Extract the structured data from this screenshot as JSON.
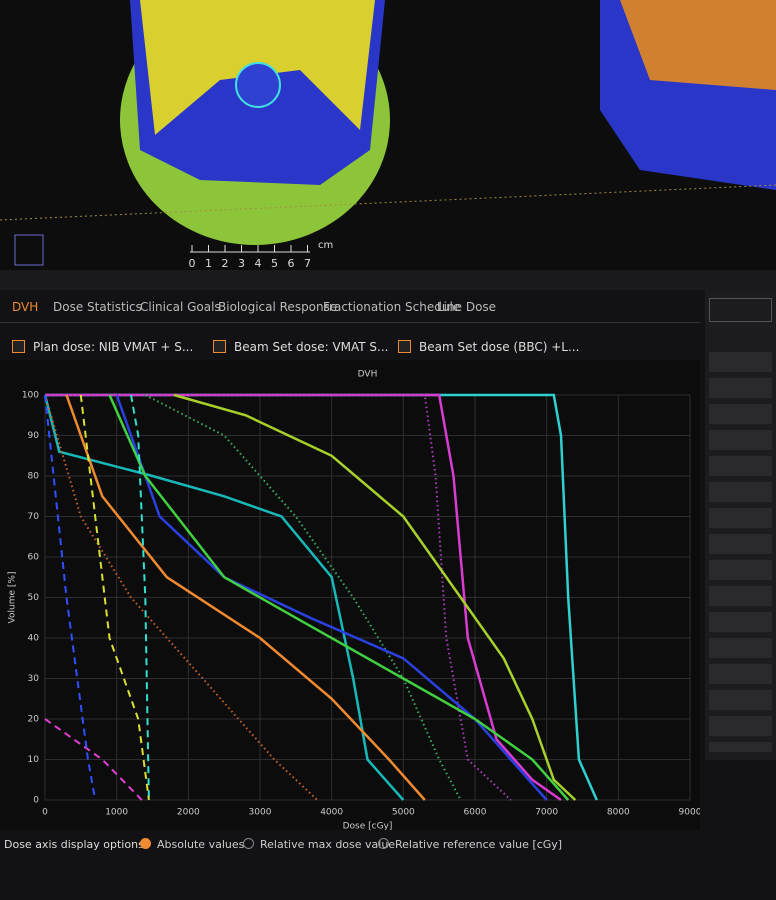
{
  "ui": {
    "tabs": [
      "DVH",
      "Dose Statistics",
      "Clinical Goals",
      "Biological Response",
      "Fractionation Schedule",
      "Line Dose"
    ],
    "checkboxes": [
      "Plan dose: NIB VMAT + S...",
      "Beam Set dose: VMAT S...",
      "Beam Set dose (BBC) +L..."
    ],
    "scale": {
      "ticks": [
        0,
        1,
        2,
        3,
        4,
        5,
        6,
        7
      ],
      "unit": "cm"
    },
    "dose_options": {
      "label": "Dose axis display options:",
      "options": [
        "Absolute values",
        "Relative max dose value",
        "Relative reference value [cGy]"
      ]
    }
  },
  "chart_data": {
    "type": "line",
    "title": "DVH",
    "x_label": "Dose [cGy]",
    "y_label": "Volume [%]",
    "xlim": [
      0,
      9000
    ],
    "ylim": [
      0,
      100
    ],
    "xticks": [
      0,
      1000,
      2000,
      3000,
      4000,
      5000,
      6000,
      7000,
      8000,
      9000
    ],
    "yticks": [
      0,
      10,
      20,
      30,
      40,
      50,
      60,
      70,
      80,
      90,
      100
    ],
    "grid": true,
    "series": [
      {
        "color": "#2fd0d0",
        "style": "solid",
        "x": [
          0,
          7100,
          7200,
          7300,
          7450,
          7700
        ],
        "values": [
          100,
          100,
          90,
          50,
          10,
          0
        ]
      },
      {
        "color": "#d93cd0",
        "style": "solid",
        "x": [
          0,
          5500,
          5700,
          5900,
          6300,
          6800,
          7200
        ],
        "values": [
          100,
          100,
          80,
          40,
          15,
          5,
          0
        ]
      },
      {
        "color": "#b040c0",
        "style": "dotted",
        "x": [
          0,
          5300,
          5450,
          5600,
          5900,
          6500
        ],
        "values": [
          100,
          100,
          80,
          40,
          10,
          0
        ]
      },
      {
        "color": "#a8d02a",
        "style": "solid",
        "x": [
          1800,
          2800,
          4000,
          5000,
          5800,
          6400,
          6800,
          7100,
          7400
        ],
        "values": [
          100,
          95,
          85,
          70,
          50,
          35,
          20,
          5,
          0
        ]
      },
      {
        "color": "#3ab060",
        "style": "dotted",
        "x": [
          1400,
          2500,
          3500,
          4300,
          5000,
          5500,
          5800
        ],
        "values": [
          100,
          90,
          70,
          50,
          30,
          10,
          0
        ]
      },
      {
        "color": "#18b8b8",
        "style": "solid",
        "x": [
          0,
          200,
          1500,
          2500,
          3300,
          4000,
          4300,
          4500,
          5000
        ],
        "values": [
          100,
          86,
          80,
          75,
          70,
          55,
          30,
          10,
          0
        ]
      },
      {
        "color": "#2a40e0",
        "style": "solid",
        "x": [
          1000,
          1600,
          2500,
          3700,
          5000,
          6000,
          6500,
          7000
        ],
        "values": [
          100,
          70,
          55,
          45,
          35,
          20,
          10,
          0
        ]
      },
      {
        "color": "#40d040",
        "style": "solid",
        "x": [
          900,
          1400,
          2500,
          3500,
          5000,
          6000,
          6800,
          7300
        ],
        "values": [
          100,
          80,
          55,
          45,
          30,
          20,
          10,
          0
        ]
      },
      {
        "color": "#f08a30",
        "style": "solid",
        "x": [
          300,
          800,
          1700,
          3000,
          4000,
          4800,
          5300
        ],
        "values": [
          100,
          75,
          55,
          40,
          25,
          10,
          0
        ]
      },
      {
        "color": "#c86428",
        "style": "dotted",
        "x": [
          0,
          500,
          1200,
          2200,
          3200,
          3800
        ],
        "values": [
          100,
          70,
          50,
          30,
          10,
          0
        ]
      },
      {
        "color": "#30e0d0",
        "style": "dashed",
        "x": [
          1200,
          1300,
          1400,
          1450
        ],
        "values": [
          100,
          90,
          50,
          0
        ]
      },
      {
        "color": "#d8e030",
        "style": "dashed",
        "x": [
          500,
          700,
          900,
          1300,
          1450
        ],
        "values": [
          100,
          70,
          40,
          20,
          0
        ]
      },
      {
        "color": "#e040d0",
        "style": "dashed",
        "x": [
          0,
          800,
          1350
        ],
        "values": [
          20,
          10,
          0
        ]
      },
      {
        "color": "#3050ff",
        "style": "dashed",
        "x": [
          0,
          300,
          600,
          700
        ],
        "values": [
          100,
          50,
          10,
          0
        ]
      }
    ]
  }
}
